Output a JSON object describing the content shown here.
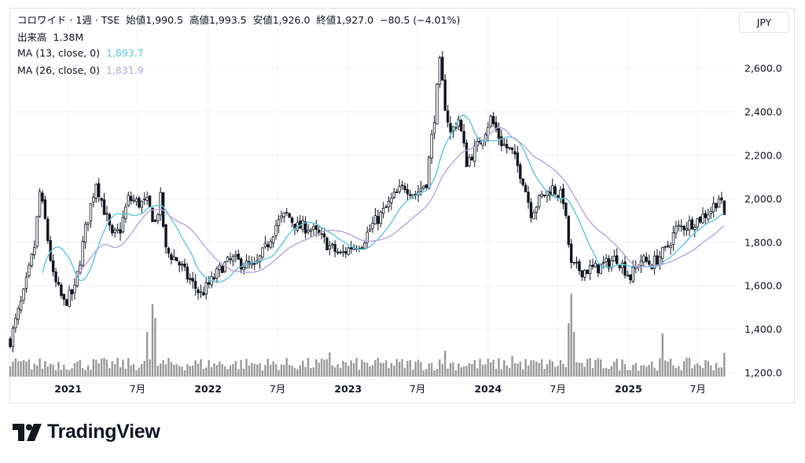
{
  "header": {
    "symbol": "コロワイド · 1週 · TSE",
    "open_label": "始値",
    "open": "1,990.5",
    "high_label": "高値",
    "high": "1,993.5",
    "low_label": "安値",
    "low": "1,926.0",
    "close_label": "終値",
    "close": "1,927.0",
    "change": "−80.5 (−4.01%)",
    "volume_label": "出来高",
    "volume": "1.38M",
    "ma13_label": "MA (13, close, 0)",
    "ma13_value": "1,893.7",
    "ma26_label": "MA (26, close, 0)",
    "ma26_value": "1,831.9",
    "currency_button": "JPY"
  },
  "brand": {
    "name": "TradingView"
  },
  "colors": {
    "candle": "#131722",
    "ma13": "#5ec8e0",
    "ma26": "#b9a6e0",
    "volume": "#9a9a9a",
    "grid": "#f0f3fa",
    "down_text": "#131722"
  },
  "chart_data": {
    "type": "candlestick",
    "title": "コロワイド · 1週 · TSE",
    "currency": "JPY",
    "y_ticks": [
      "2,600.0",
      "2,400.0",
      "2,200.0",
      "2,000.0",
      "1,800.0",
      "1,600.0",
      "1,400.0",
      "1,200.0"
    ],
    "y_tick_values": [
      2600,
      2400,
      2200,
      2000,
      1800,
      1600,
      1400,
      1200
    ],
    "ylim": [
      1200,
      2680
    ],
    "x_labels": [
      {
        "label": "2021",
        "date": "2021-01-01"
      },
      {
        "label": "7月",
        "date": "2021-07-01"
      },
      {
        "label": "2022",
        "date": "2022-01-01"
      },
      {
        "label": "7月",
        "date": "2022-07-01"
      },
      {
        "label": "2023",
        "date": "2023-01-01"
      },
      {
        "label": "7月",
        "date": "2023-07-01"
      },
      {
        "label": "2024",
        "date": "2024-01-01"
      },
      {
        "label": "7月",
        "date": "2024-07-01"
      },
      {
        "label": "2025",
        "date": "2025-01-01"
      },
      {
        "label": "7月",
        "date": "2025-07-01"
      }
    ],
    "xlim_dates": [
      "2020-08-03",
      "2025-10-06"
    ],
    "close_anchors": [
      [
        "2020-08-03",
        1350
      ],
      [
        "2020-09-07",
        1560
      ],
      [
        "2020-10-05",
        1780
      ],
      [
        "2020-10-19",
        2030
      ],
      [
        "2020-11-02",
        1900
      ],
      [
        "2020-11-23",
        1640
      ],
      [
        "2020-12-21",
        1520
      ],
      [
        "2021-01-18",
        1580
      ],
      [
        "2021-02-15",
        1860
      ],
      [
        "2021-03-15",
        2080
      ],
      [
        "2021-04-05",
        1950
      ],
      [
        "2021-04-26",
        1820
      ],
      [
        "2021-05-17",
        1860
      ],
      [
        "2021-06-07",
        2000
      ],
      [
        "2021-07-05",
        1980
      ],
      [
        "2021-07-26",
        1980
      ],
      [
        "2021-08-16",
        1890
      ],
      [
        "2021-08-30",
        2000
      ],
      [
        "2021-09-13",
        1760
      ],
      [
        "2021-10-11",
        1720
      ],
      [
        "2021-11-08",
        1640
      ],
      [
        "2021-12-13",
        1560
      ],
      [
        "2022-01-10",
        1620
      ],
      [
        "2022-02-07",
        1690
      ],
      [
        "2022-03-07",
        1720
      ],
      [
        "2022-04-04",
        1700
      ],
      [
        "2022-05-02",
        1680
      ],
      [
        "2022-05-30",
        1770
      ],
      [
        "2022-06-27",
        1880
      ],
      [
        "2022-07-25",
        1930
      ],
      [
        "2022-08-22",
        1870
      ],
      [
        "2022-09-19",
        1870
      ],
      [
        "2022-10-17",
        1830
      ],
      [
        "2022-11-14",
        1780
      ],
      [
        "2022-12-12",
        1740
      ],
      [
        "2023-01-09",
        1780
      ],
      [
        "2023-02-06",
        1800
      ],
      [
        "2023-03-06",
        1880
      ],
      [
        "2023-04-03",
        1940
      ],
      [
        "2023-05-01",
        2010
      ],
      [
        "2023-05-29",
        2060
      ],
      [
        "2023-06-26",
        2020
      ],
      [
        "2023-07-24",
        2080
      ],
      [
        "2023-08-14",
        2380
      ],
      [
        "2023-08-28",
        2620
      ],
      [
        "2023-09-11",
        2430
      ],
      [
        "2023-09-25",
        2300
      ],
      [
        "2023-10-16",
        2370
      ],
      [
        "2023-11-06",
        2170
      ],
      [
        "2023-12-04",
        2240
      ],
      [
        "2024-01-08",
        2370
      ],
      [
        "2024-02-05",
        2260
      ],
      [
        "2024-03-04",
        2210
      ],
      [
        "2024-04-01",
        2090
      ],
      [
        "2024-04-22",
        1940
      ],
      [
        "2024-05-20",
        2010
      ],
      [
        "2024-06-17",
        2050
      ],
      [
        "2024-07-15",
        2000
      ],
      [
        "2024-08-05",
        1690
      ],
      [
        "2024-09-02",
        1670
      ],
      [
        "2024-10-07",
        1680
      ],
      [
        "2024-11-04",
        1700
      ],
      [
        "2024-12-02",
        1730
      ],
      [
        "2025-01-06",
        1640
      ],
      [
        "2025-02-03",
        1720
      ],
      [
        "2025-03-03",
        1700
      ],
      [
        "2025-04-07",
        1760
      ],
      [
        "2025-05-05",
        1860
      ],
      [
        "2025-06-02",
        1880
      ],
      [
        "2025-07-07",
        1910
      ],
      [
        "2025-08-04",
        1950
      ],
      [
        "2025-08-25",
        2007.5
      ],
      [
        "2025-09-08",
        1927
      ]
    ],
    "volume_anchors": [
      [
        "2021-08-09",
        4.2
      ],
      [
        "2021-08-16",
        3.4
      ],
      [
        "2021-07-26",
        2.6
      ],
      [
        "2022-11-14",
        1.4
      ],
      [
        "2023-09-11",
        1.5
      ],
      [
        "2024-03-04",
        1.2
      ],
      [
        "2024-08-05",
        4.8
      ],
      [
        "2024-08-12",
        2.6
      ],
      [
        "2024-07-29",
        3.1
      ],
      [
        "2025-03-31",
        2.5
      ],
      [
        "2025-09-08",
        1.38
      ]
    ],
    "series": [
      {
        "name": "MA (13, close, 0)",
        "last": 1893.7
      },
      {
        "name": "MA (26, close, 0)",
        "last": 1831.9
      }
    ],
    "last_bar": {
      "open": 1990.5,
      "high": 1993.5,
      "low": 1926.0,
      "close": 1927.0
    }
  }
}
